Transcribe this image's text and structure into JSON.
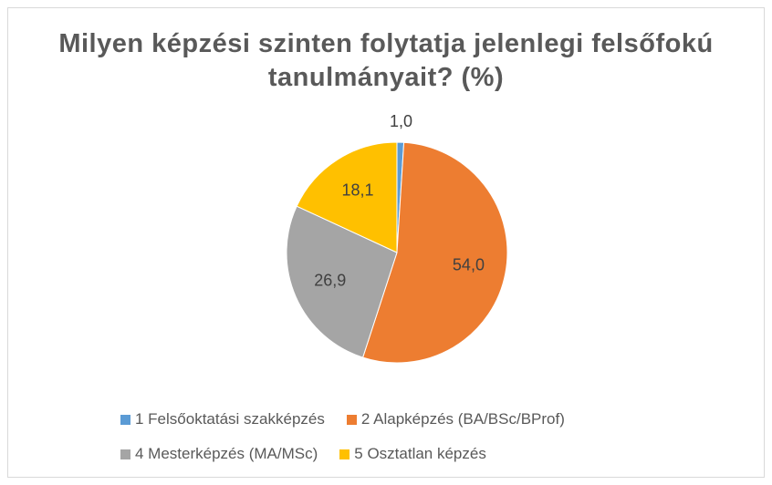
{
  "chart_data": {
    "type": "pie",
    "title": "Milyen képzési szinten folytatja jelenlegi felsőfokú tanulmányait? (%)",
    "categories": [
      "1 Felsőoktatási szakképzés",
      "2 Alapképzés (BA/BSc/BProf)",
      "4 Mesterképzés (MA/MSc)",
      "5 Osztatlan képzés"
    ],
    "values": [
      1.0,
      54.0,
      26.9,
      18.1
    ],
    "value_labels": [
      "1,0",
      "54,0",
      "26,9",
      "18,1"
    ],
    "colors": [
      "#5b9bd5",
      "#ed7d31",
      "#a5a5a5",
      "#ffc000"
    ],
    "legend": "bottom"
  }
}
